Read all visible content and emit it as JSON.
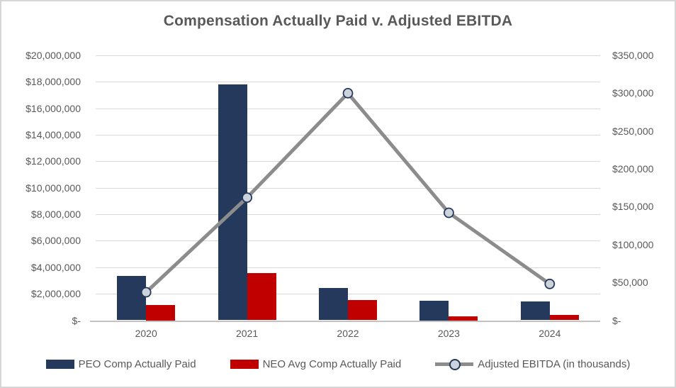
{
  "title": "Compensation Actually Paid v. Adjusted EBITDA",
  "colors": {
    "peo_bar": "#24395b",
    "neo_bar": "#c00000",
    "ebitda_line": "#8c8c8c",
    "marker_fill": "#ccd3db",
    "marker_ring": "#24395b",
    "gridline": "#d9d9d9",
    "axis_line": "#c3c3c3",
    "text": "#595959"
  },
  "chart_data": {
    "type": "bar",
    "subtype": "combo-bar-line-dual-axis",
    "title": "Compensation Actually Paid v. Adjusted EBITDA",
    "categories": [
      "2020",
      "2021",
      "2022",
      "2023",
      "2024"
    ],
    "series": [
      {
        "name": "PEO Comp Actually Paid",
        "kind": "bar",
        "axis": "left",
        "color": "#24395b",
        "values": [
          3350000,
          17800000,
          2450000,
          1500000,
          1400000
        ]
      },
      {
        "name": "NEO Avg Comp Actually Paid",
        "kind": "bar",
        "axis": "left",
        "color": "#c00000",
        "values": [
          1150000,
          3550000,
          1550000,
          320000,
          420000
        ]
      },
      {
        "name": "Adjusted EBITDA (in thousands)",
        "kind": "line",
        "axis": "right",
        "color": "#8c8c8c",
        "values": [
          37000,
          162000,
          300000,
          142000,
          48000
        ]
      }
    ],
    "left_axis": {
      "min": 0,
      "max": 20000000,
      "tick_labels": [
        "$20,000,000",
        "$18,000,000",
        "$16,000,000",
        "$14,000,000",
        "$12,000,000",
        "$10,000,000",
        "$8,000,000",
        "$6,000,000",
        "$4,000,000",
        "$2,000,000",
        "$-"
      ]
    },
    "right_axis": {
      "min": 0,
      "max": 350000,
      "tick_labels": [
        "$350,000",
        "$300,000",
        "$250,000",
        "$200,000",
        "$150,000",
        "$100,000",
        "$50,000",
        "$-"
      ]
    },
    "grid": true,
    "legend_position": "bottom",
    "xlabel": "",
    "ylabel": ""
  }
}
